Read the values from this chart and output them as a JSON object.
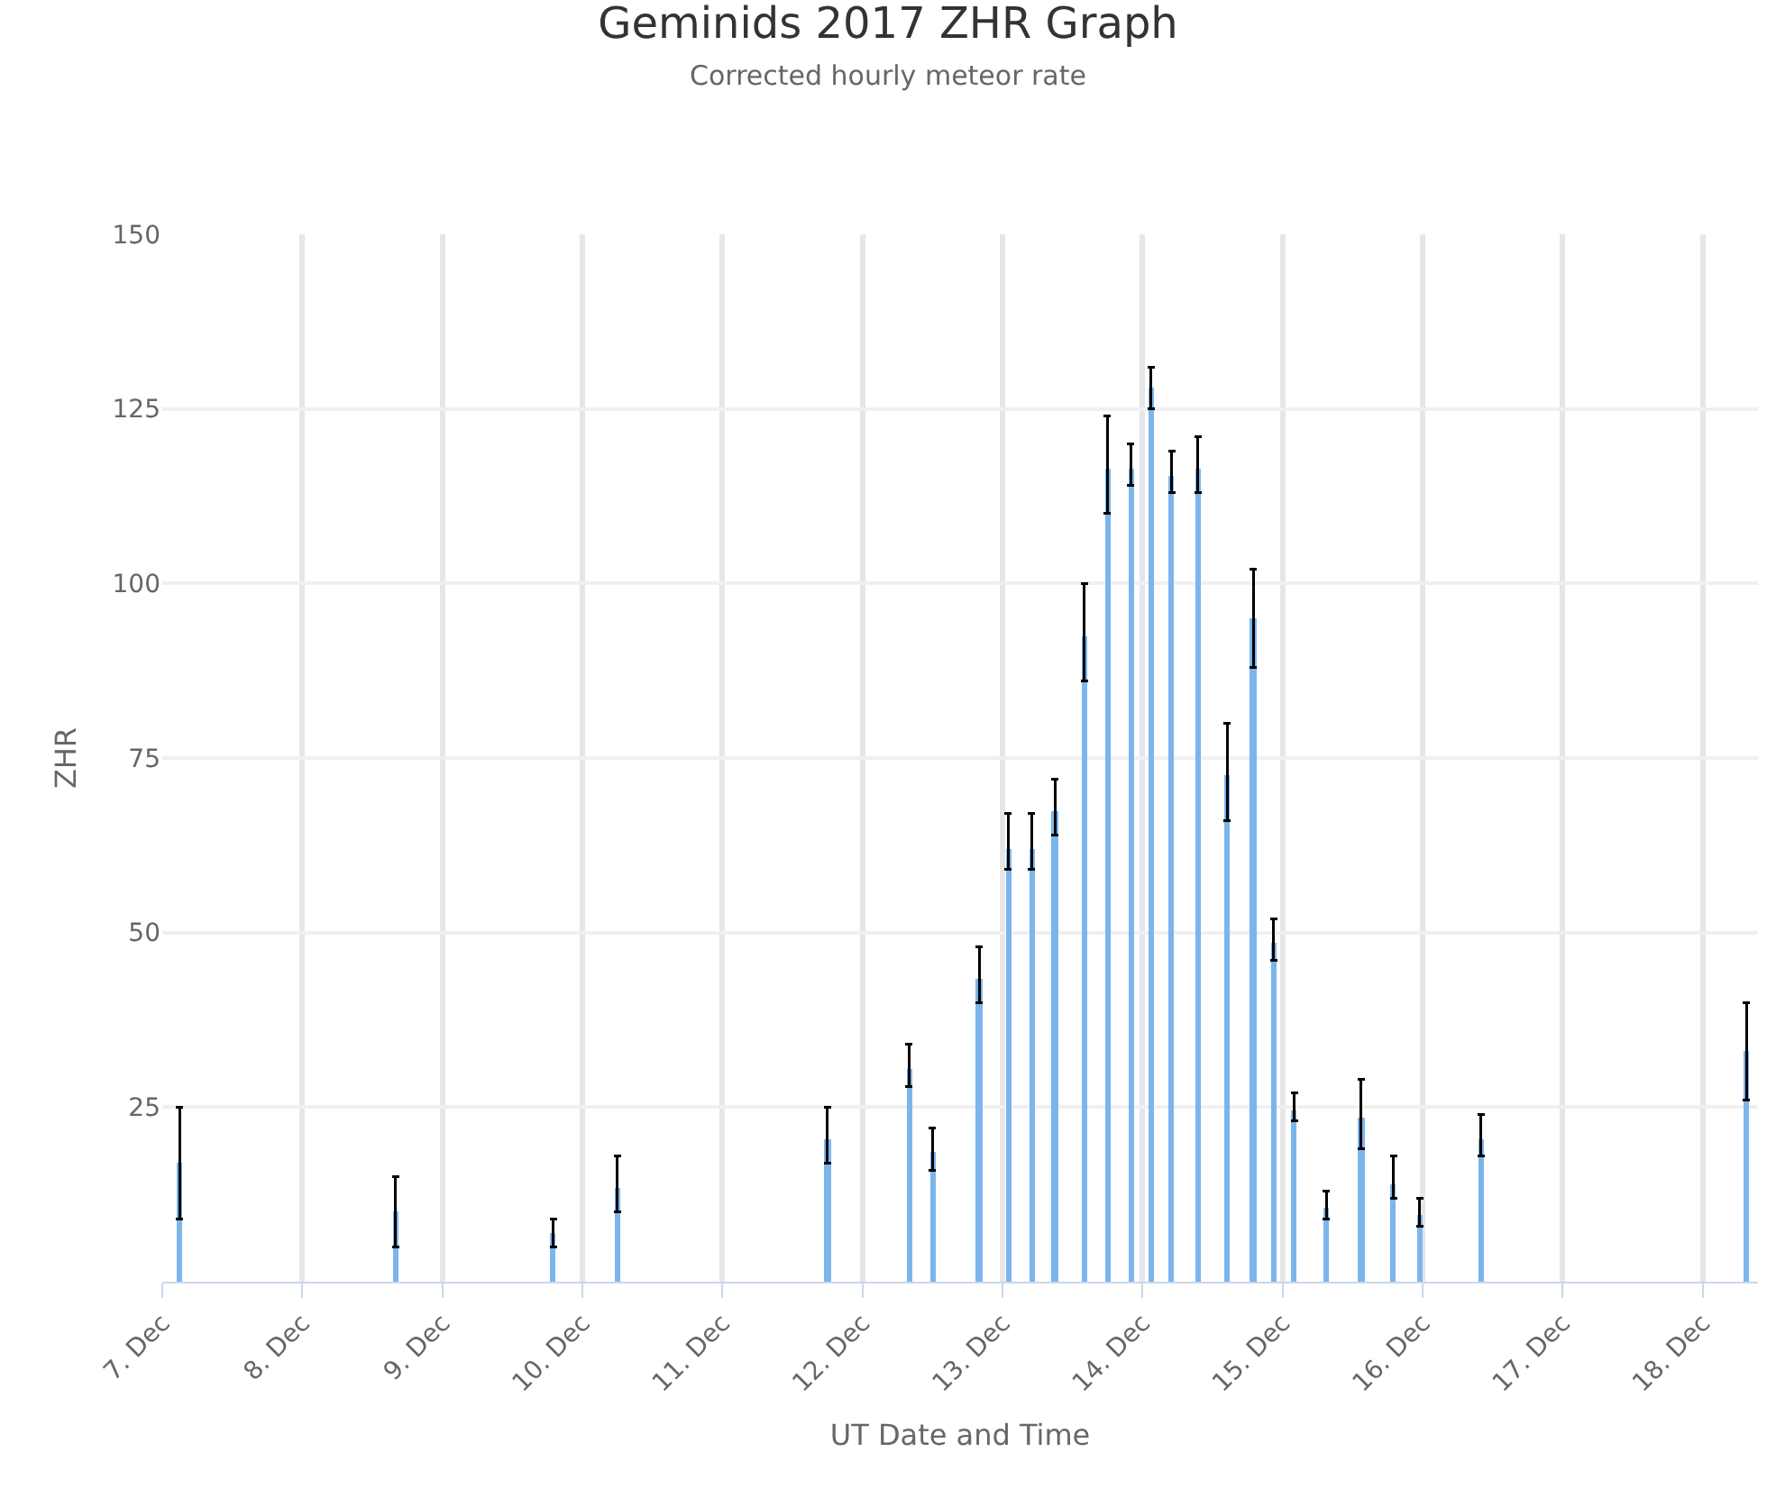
{
  "chart_data": {
    "type": "bar",
    "title": "Geminids 2017 ZHR Graph",
    "subtitle": "Corrected hourly meteor rate",
    "xlabel": "UT Date and Time",
    "ylabel": "ZHR",
    "x": [
      "2017-12-07T03:00",
      "2017-12-08T16:00",
      "2017-12-09T19:00",
      "2017-12-10T06:00",
      "2017-12-11T18:00",
      "2017-12-12T08:00",
      "2017-12-12T12:00",
      "2017-12-12T20:00",
      "2017-12-13T01:00",
      "2017-12-13T05:00",
      "2017-12-13T09:00",
      "2017-12-13T14:00",
      "2017-12-13T18:00",
      "2017-12-13T22:00",
      "2017-12-14T01:30",
      "2017-12-14T05:00",
      "2017-12-14T09:30",
      "2017-12-14T14:30",
      "2017-12-14T19:00",
      "2017-12-14T22:30",
      "2017-12-15T02:00",
      "2017-12-15T07:30",
      "2017-12-15T13:30",
      "2017-12-15T19:00",
      "2017-12-15T23:30",
      "2017-12-16T10:00",
      "2017-12-18T07:30"
    ],
    "series": [
      {
        "color": "#7cb5ec",
        "values": [
          17,
          10,
          7,
          13.5,
          20.5,
          30.5,
          18.5,
          43.5,
          62,
          62,
          67.5,
          92.5,
          116.5,
          116.5,
          128,
          115.5,
          116.5,
          72.5,
          95,
          48.5,
          24.5,
          10.5,
          23.5,
          14,
          9.5,
          20.5,
          33
        ],
        "errors": [
          [
            9,
            25
          ],
          [
            5,
            15
          ],
          [
            5,
            9
          ],
          [
            10,
            18
          ],
          [
            17,
            25
          ],
          [
            28,
            34
          ],
          [
            16,
            22
          ],
          [
            40,
            48
          ],
          [
            59,
            67
          ],
          [
            59,
            67
          ],
          [
            64,
            72
          ],
          [
            86,
            100
          ],
          [
            110,
            124
          ],
          [
            114,
            120
          ],
          [
            125,
            131
          ],
          [
            113,
            119
          ],
          [
            113,
            121
          ],
          [
            66,
            80
          ],
          [
            88,
            102
          ],
          [
            46,
            52
          ],
          [
            23,
            27
          ],
          [
            9,
            13
          ],
          [
            19,
            29
          ],
          [
            12,
            18
          ],
          [
            8,
            12
          ],
          [
            18,
            24
          ],
          [
            26,
            40
          ]
        ]
      }
    ],
    "xlim": [
      "2017-12-07T00:00",
      "2017-12-18T09:30"
    ],
    "xticks": [
      {
        "value": "2017-12-07",
        "label": "7. Dec"
      },
      {
        "value": "2017-12-08",
        "label": "8. Dec"
      },
      {
        "value": "2017-12-09",
        "label": "9. Dec"
      },
      {
        "value": "2017-12-10",
        "label": "10. Dec"
      },
      {
        "value": "2017-12-11",
        "label": "11. Dec"
      },
      {
        "value": "2017-12-12",
        "label": "12. Dec"
      },
      {
        "value": "2017-12-13",
        "label": "13. Dec"
      },
      {
        "value": "2017-12-14",
        "label": "14. Dec"
      },
      {
        "value": "2017-12-15",
        "label": "15. Dec"
      },
      {
        "value": "2017-12-16",
        "label": "16. Dec"
      },
      {
        "value": "2017-12-17",
        "label": "17. Dec"
      },
      {
        "value": "2017-12-18",
        "label": "18. Dec"
      }
    ],
    "ylim": [
      0,
      150
    ],
    "yticks": [
      25,
      50,
      75,
      100,
      125,
      150
    ],
    "grid": true
  }
}
